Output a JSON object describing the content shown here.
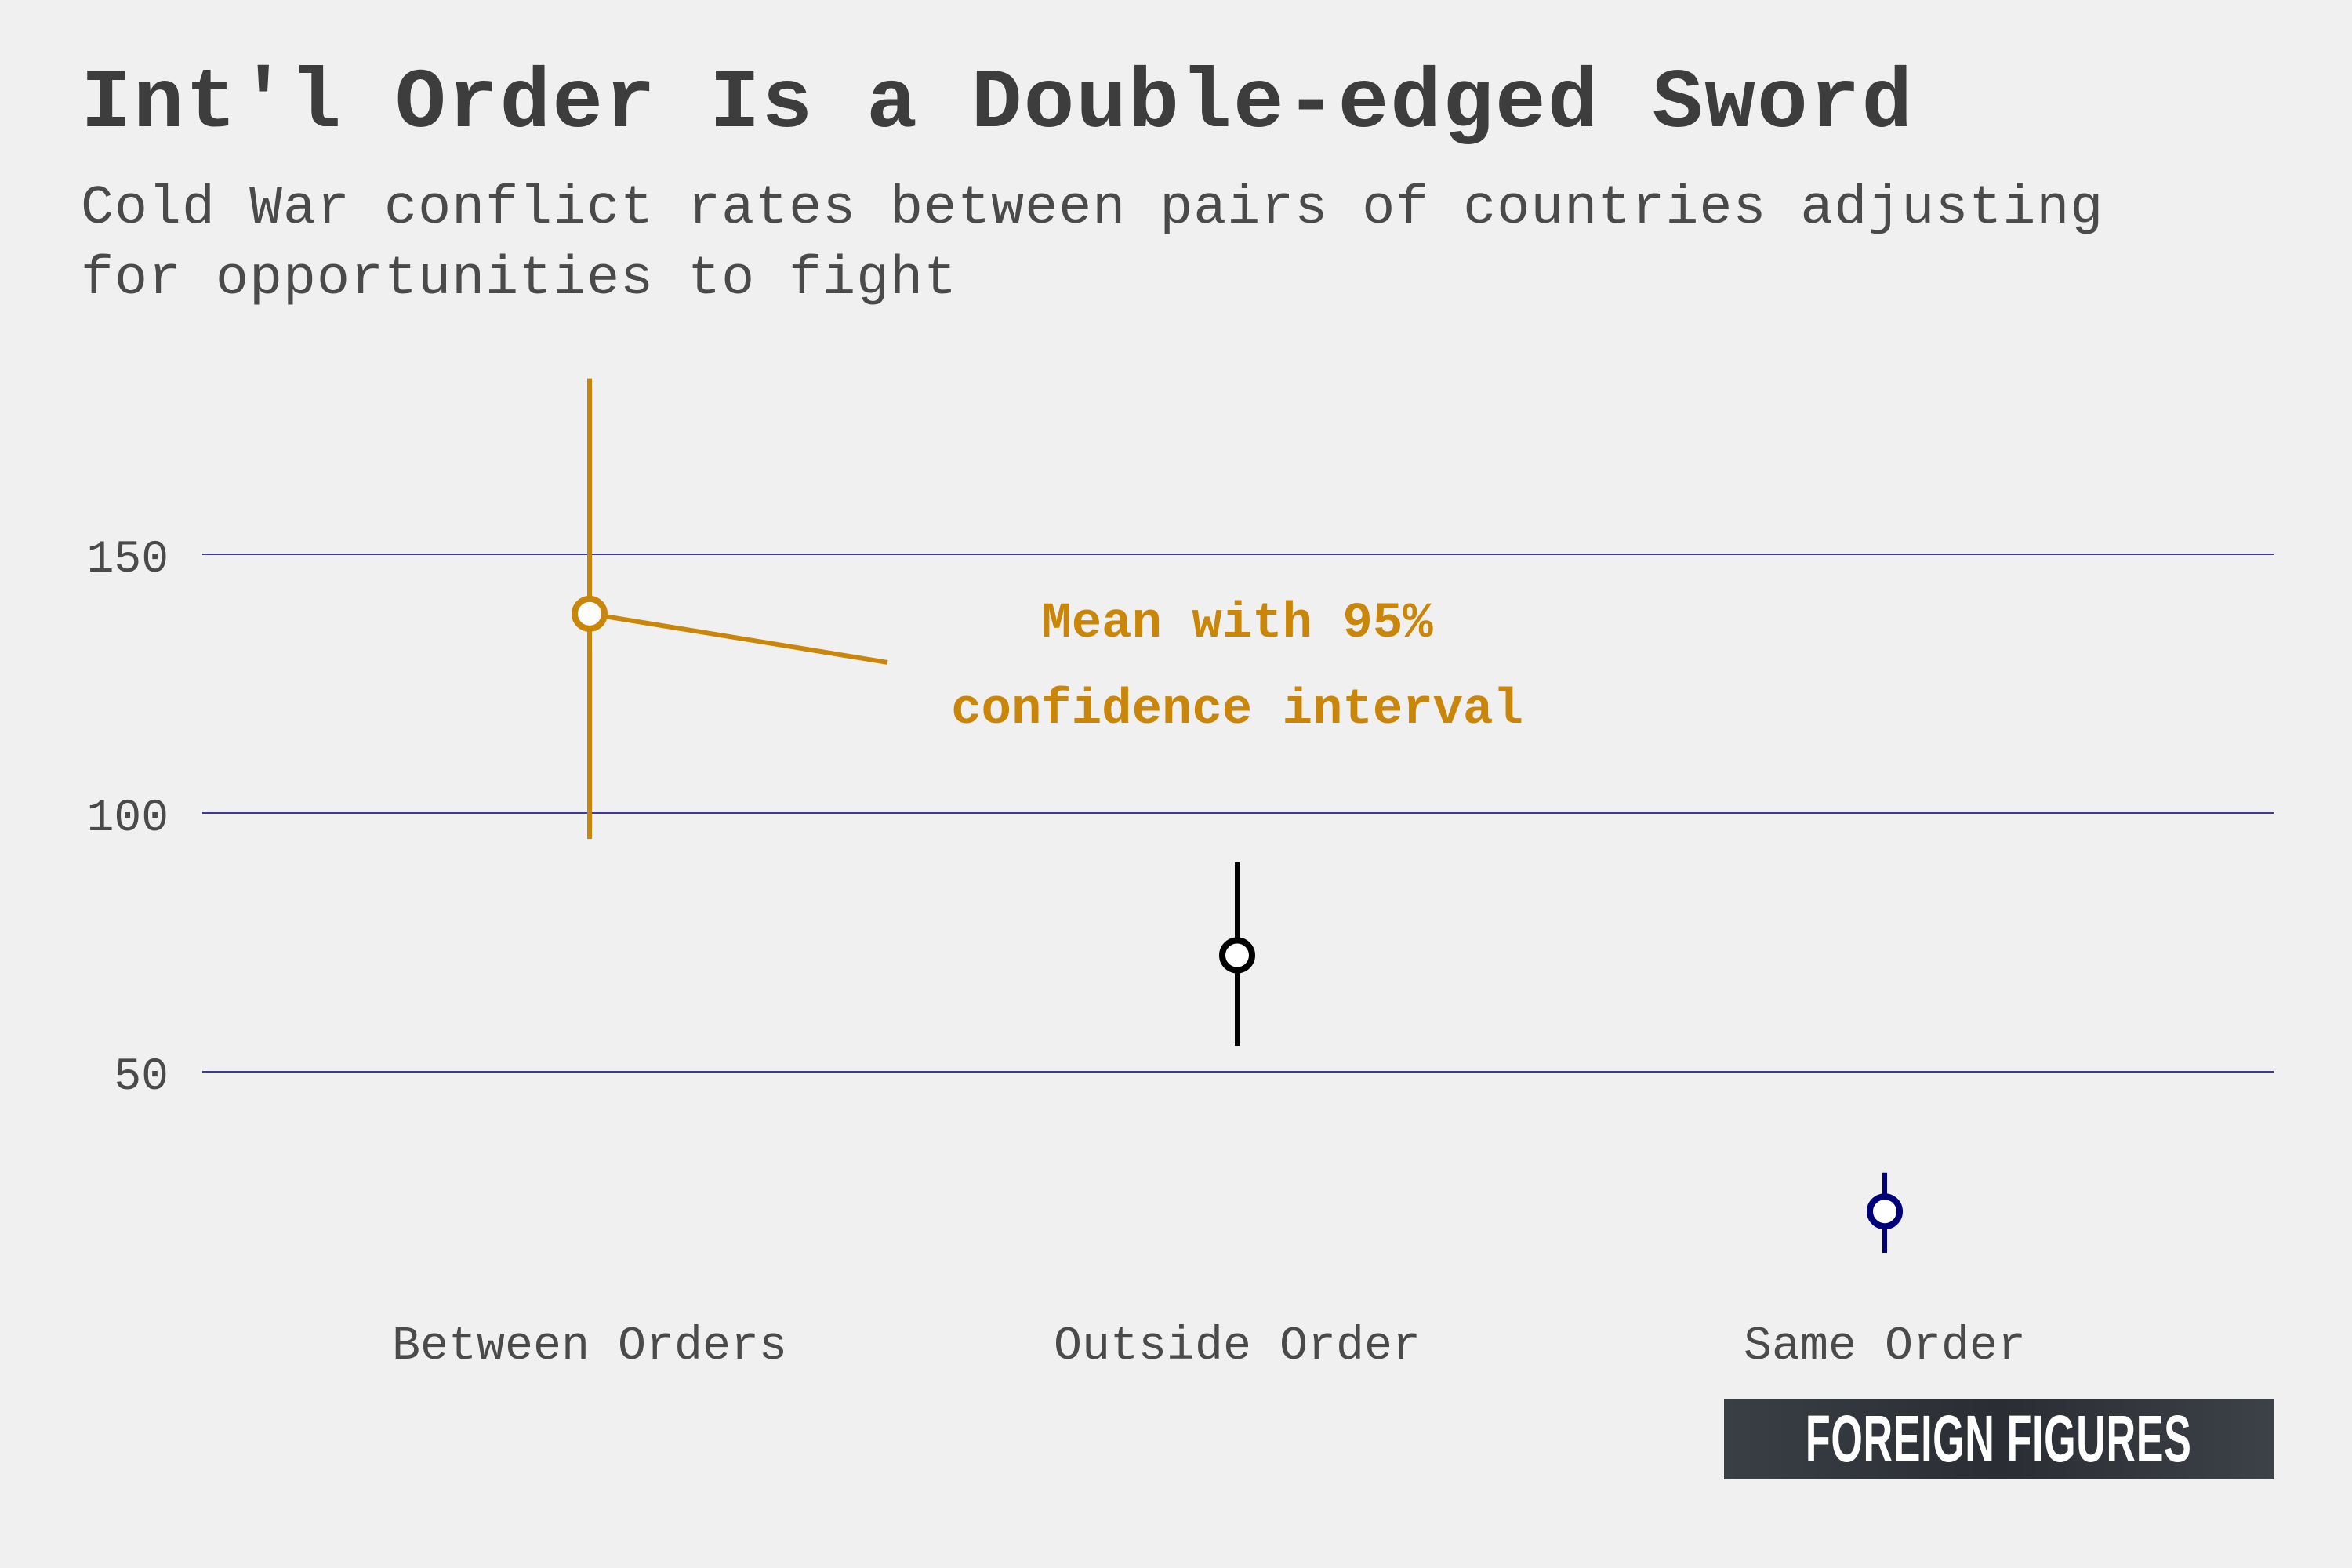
{
  "chart_data": {
    "type": "scatter",
    "title": "Int'l Order Is a Double-edged Sword",
    "subtitle": "Cold War conflict rates between pairs of countries adjusting for opportunities to fight",
    "xlabel": "",
    "ylabel": "",
    "ylim": [
      0,
      190
    ],
    "yticks": [
      50,
      100,
      150
    ],
    "grid": true,
    "categories": [
      "Between Orders",
      "Outside Order",
      "Same Order"
    ],
    "points": [
      {
        "category": "Between Orders",
        "mean": 138.5,
        "lower": 95,
        "upper": 184,
        "color": "#c98608"
      },
      {
        "category": "Outside Order",
        "mean": 72.5,
        "lower": 55,
        "upper": 90.5,
        "color": "#000000"
      },
      {
        "category": "Same Order",
        "mean": 23,
        "lower": 15,
        "upper": 30.5,
        "color": "#00007a"
      }
    ],
    "annotation": {
      "line1": "Mean with 95%",
      "line2": "confidence interval",
      "color": "#c98608"
    },
    "gridline_color": "#3a3a9a"
  },
  "brand": {
    "label": "FOREIGN FIGURES"
  }
}
